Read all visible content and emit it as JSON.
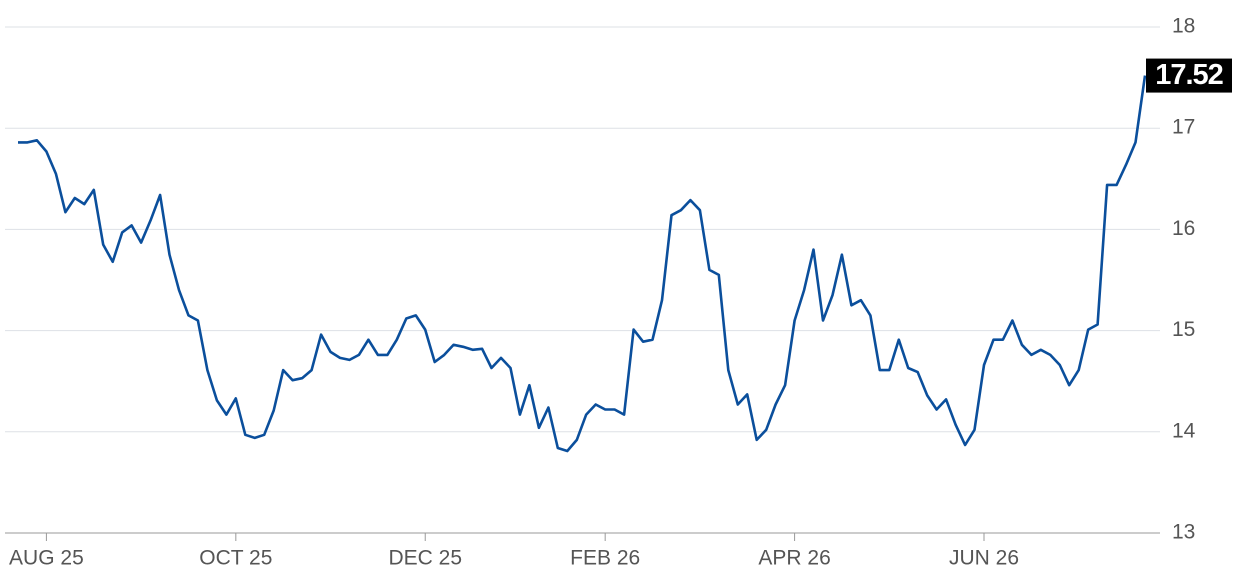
{
  "chart_data": {
    "type": "line",
    "categories": [
      null,
      null,
      null,
      "AUG 25",
      null,
      null,
      null,
      null,
      null,
      null,
      null,
      null,
      null,
      null,
      null,
      null,
      null,
      null,
      null,
      null,
      null,
      null,
      null,
      "OCT 25",
      null,
      null,
      null,
      null,
      null,
      null,
      null,
      null,
      null,
      null,
      null,
      null,
      null,
      null,
      null,
      null,
      null,
      null,
      null,
      "DEC 25",
      null,
      null,
      null,
      null,
      null,
      null,
      null,
      null,
      null,
      null,
      null,
      null,
      null,
      null,
      null,
      null,
      null,
      null,
      "FEB 26",
      null,
      null,
      null,
      null,
      null,
      null,
      null,
      null,
      null,
      null,
      null,
      null,
      null,
      null,
      null,
      null,
      null,
      null,
      null,
      "APR 26",
      null,
      null,
      null,
      null,
      null,
      null,
      null,
      null,
      null,
      null,
      null,
      null,
      null,
      null,
      null,
      null,
      null,
      null,
      null,
      "JUN 26",
      null,
      null,
      null,
      null,
      null,
      null,
      null,
      null,
      null,
      null,
      null,
      null,
      null,
      null,
      null,
      null,
      null
    ],
    "series": [
      {
        "color": "#0b4f9c",
        "values": [
          16.86,
          16.86,
          16.88,
          16.77,
          16.55,
          16.17,
          16.31,
          16.25,
          16.39,
          15.85,
          15.68,
          15.97,
          16.04,
          15.87,
          16.09,
          16.34,
          15.75,
          15.4,
          15.15,
          15.1,
          14.61,
          14.31,
          14.17,
          14.33,
          13.97,
          13.94,
          13.97,
          14.21,
          14.61,
          14.51,
          14.53,
          14.61,
          14.96,
          14.79,
          14.73,
          14.71,
          14.76,
          14.91,
          14.76,
          14.76,
          14.91,
          15.12,
          15.15,
          15.01,
          14.69,
          14.76,
          14.86,
          14.84,
          14.81,
          14.82,
          14.63,
          14.73,
          14.63,
          14.17,
          14.46,
          14.04,
          14.24,
          13.84,
          13.81,
          13.92,
          14.17,
          14.27,
          14.22,
          14.22,
          14.17,
          15.01,
          14.89,
          14.91,
          15.3,
          16.14,
          16.19,
          16.29,
          16.19,
          15.6,
          15.55,
          14.61,
          14.27,
          14.37,
          13.92,
          14.02,
          14.27,
          14.46,
          15.1,
          15.4,
          15.8,
          15.1,
          15.35,
          15.75,
          15.25,
          15.3,
          15.15,
          14.61,
          14.61,
          14.91,
          14.63,
          14.59,
          14.36,
          14.22,
          14.32,
          14.07,
          13.87,
          14.02,
          14.66,
          14.91,
          14.91,
          15.1,
          14.86,
          14.76,
          14.81,
          14.76,
          14.66,
          14.46,
          14.61,
          15.01,
          15.06,
          16.44,
          16.44,
          16.64,
          16.86,
          17.52
        ]
      }
    ],
    "ylim": [
      13,
      18
    ],
    "yticks": [
      13,
      14,
      15,
      16,
      17,
      18
    ],
    "grid": true
  }
}
